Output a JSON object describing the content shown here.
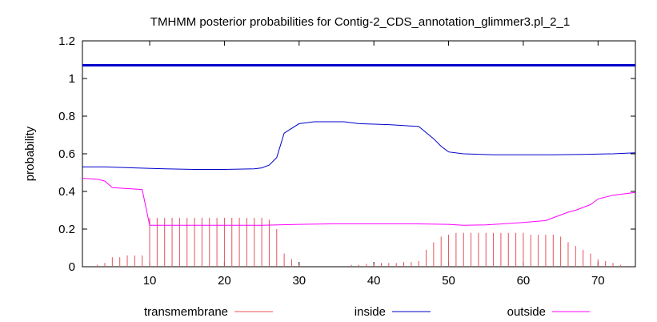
{
  "chart_data": {
    "type": "line",
    "title": "TMHMM posterior probabilities for Contig-2_CDS_annotation_glimmer3.pl_2_1",
    "xlabel": "",
    "ylabel": "probability",
    "xlim": [
      1,
      75
    ],
    "ylim": [
      0,
      1.2
    ],
    "xticks": [
      10,
      20,
      30,
      40,
      50,
      60,
      70
    ],
    "yticks": [
      0,
      0.2,
      0.4,
      0.6,
      0.8,
      1,
      1.2
    ],
    "ytick_labels": [
      "0",
      "0.2",
      "0.4",
      "0.6",
      "0.8",
      "1",
      "1.2"
    ],
    "reference_line": {
      "y": 1.07,
      "color": "#0000cc"
    },
    "legend_position": "bottom",
    "series": [
      {
        "name": "transmembrane",
        "style": "impulses",
        "color": "#e8505b",
        "x": [
          1,
          2,
          3,
          4,
          5,
          6,
          7,
          8,
          9,
          10,
          11,
          12,
          13,
          14,
          15,
          16,
          17,
          18,
          19,
          20,
          21,
          22,
          23,
          24,
          25,
          26,
          27,
          28,
          29,
          30,
          31,
          32,
          33,
          34,
          35,
          36,
          37,
          38,
          39,
          40,
          41,
          42,
          43,
          44,
          45,
          46,
          47,
          48,
          49,
          50,
          51,
          52,
          53,
          54,
          55,
          56,
          57,
          58,
          59,
          60,
          61,
          62,
          63,
          64,
          65,
          66,
          67,
          68,
          69,
          70,
          71,
          72,
          73,
          74,
          75
        ],
        "values": [
          0.0,
          0.0,
          0.01,
          0.02,
          0.05,
          0.05,
          0.06,
          0.06,
          0.06,
          0.26,
          0.26,
          0.26,
          0.26,
          0.26,
          0.26,
          0.26,
          0.26,
          0.26,
          0.26,
          0.26,
          0.26,
          0.26,
          0.26,
          0.26,
          0.26,
          0.25,
          0.2,
          0.07,
          0.04,
          0.01,
          0.0,
          0.0,
          0.0,
          0.0,
          0.0,
          0.0,
          0.01,
          0.01,
          0.015,
          0.015,
          0.02,
          0.02,
          0.02,
          0.025,
          0.025,
          0.03,
          0.09,
          0.13,
          0.16,
          0.17,
          0.18,
          0.18,
          0.18,
          0.18,
          0.18,
          0.18,
          0.18,
          0.18,
          0.18,
          0.18,
          0.17,
          0.17,
          0.17,
          0.17,
          0.16,
          0.13,
          0.11,
          0.09,
          0.07,
          0.04,
          0.03,
          0.02,
          0.01,
          0.005,
          0.0
        ]
      },
      {
        "name": "inside",
        "style": "line",
        "color": "#0000cc",
        "x": [
          1,
          4,
          8,
          12,
          16,
          20,
          24,
          25,
          26,
          27,
          28,
          30,
          32,
          36,
          38,
          42,
          46,
          48,
          49,
          50,
          52,
          56,
          60,
          64,
          68,
          72,
          75
        ],
        "values": [
          0.53,
          0.53,
          0.525,
          0.52,
          0.517,
          0.517,
          0.52,
          0.525,
          0.54,
          0.58,
          0.71,
          0.76,
          0.77,
          0.77,
          0.76,
          0.755,
          0.745,
          0.68,
          0.64,
          0.61,
          0.6,
          0.595,
          0.595,
          0.595,
          0.597,
          0.6,
          0.605
        ]
      },
      {
        "name": "outside",
        "style": "line",
        "color": "#ff00ff",
        "x": [
          1,
          3,
          4,
          5,
          9,
          10,
          15,
          20,
          25,
          30,
          35,
          40,
          45,
          50,
          52,
          55,
          60,
          63,
          64,
          66,
          67,
          69,
          70,
          72,
          75
        ],
        "values": [
          0.47,
          0.465,
          0.455,
          0.42,
          0.41,
          0.22,
          0.22,
          0.22,
          0.22,
          0.225,
          0.228,
          0.228,
          0.228,
          0.225,
          0.22,
          0.222,
          0.235,
          0.245,
          0.26,
          0.29,
          0.3,
          0.33,
          0.36,
          0.38,
          0.395
        ]
      }
    ]
  }
}
